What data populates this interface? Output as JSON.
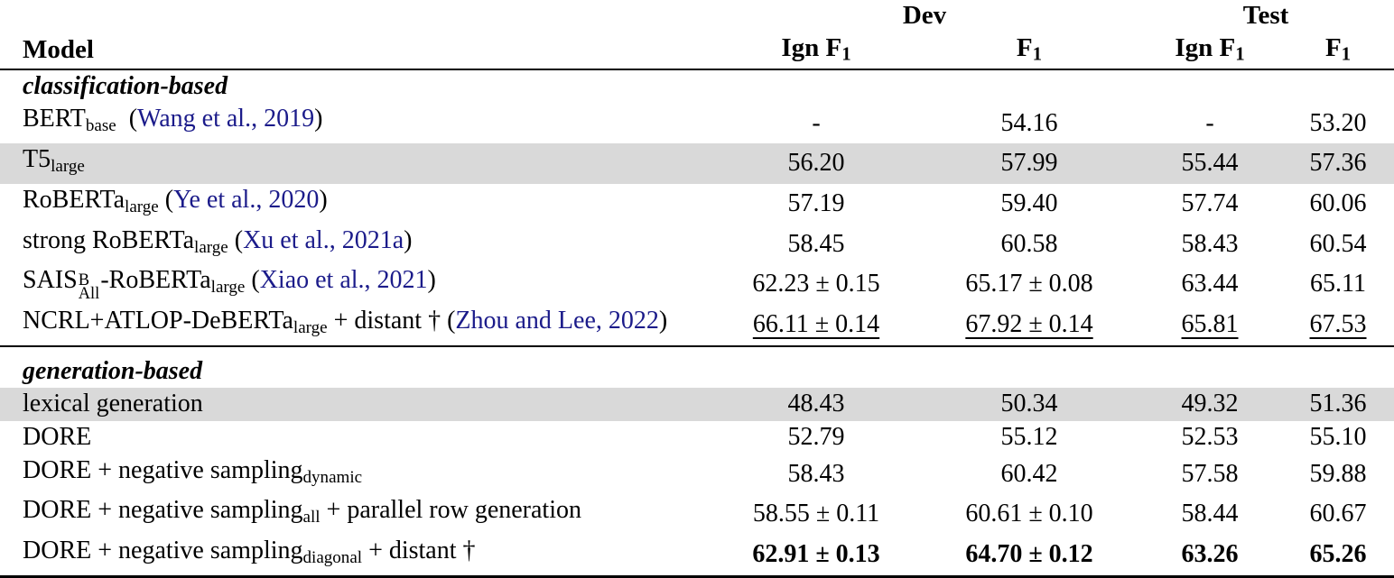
{
  "colors": {
    "highlight": "#d9d9d9",
    "citation": "#1b1b8a",
    "rule": "#000000"
  },
  "table": {
    "header": {
      "model_label": "Model",
      "dev_label": "Dev",
      "test_label": "Test",
      "metrics": [
        {
          "pre": "Ign F",
          "sub": "1"
        },
        {
          "pre": "F",
          "sub": "1"
        },
        {
          "pre": "Ign F",
          "sub": "1"
        },
        {
          "pre": "F",
          "sub": "1"
        }
      ]
    },
    "rows": [
      {
        "kind": "section",
        "label": "classification-based"
      },
      {
        "kind": "data",
        "highlight": false,
        "model": [
          {
            "t": "BERT"
          },
          {
            "s": "sub",
            "t": "base"
          },
          {
            "t": " ("
          },
          {
            "s": "cite",
            "t": "Wang et al., 2019"
          },
          {
            "t": ")"
          }
        ],
        "cells": [
          {
            "v": "-"
          },
          {
            "v": "54.16"
          },
          {
            "v": "-"
          },
          {
            "v": "53.20"
          }
        ]
      },
      {
        "kind": "data",
        "highlight": true,
        "model": [
          {
            "t": "T5"
          },
          {
            "s": "sub",
            "t": "large"
          }
        ],
        "cells": [
          {
            "v": "56.20"
          },
          {
            "v": "57.99"
          },
          {
            "v": "55.44"
          },
          {
            "v": "57.36"
          }
        ]
      },
      {
        "kind": "data",
        "highlight": false,
        "model": [
          {
            "t": "RoBERTa"
          },
          {
            "s": "sub",
            "t": "large"
          },
          {
            "t": " ("
          },
          {
            "s": "cite",
            "t": "Ye et al., 2020"
          },
          {
            "t": ")"
          }
        ],
        "cells": [
          {
            "v": "57.19"
          },
          {
            "v": "59.40"
          },
          {
            "v": "57.74"
          },
          {
            "v": "60.06"
          }
        ]
      },
      {
        "kind": "data",
        "highlight": false,
        "model": [
          {
            "t": "strong RoBERTa"
          },
          {
            "s": "sub",
            "t": "large"
          },
          {
            "t": " ("
          },
          {
            "s": "cite",
            "t": "Xu et al., 2021a"
          },
          {
            "t": ")"
          }
        ],
        "cells": [
          {
            "v": "58.45"
          },
          {
            "v": "60.58"
          },
          {
            "v": "58.43"
          },
          {
            "v": "60.54"
          }
        ]
      },
      {
        "kind": "data",
        "highlight": false,
        "model": [
          {
            "t": "SAIS"
          },
          {
            "s": "stack",
            "sup": "B",
            "sub": "All"
          },
          {
            "t": "-RoBERTa"
          },
          {
            "s": "sub",
            "t": "large"
          },
          {
            "t": " ("
          },
          {
            "s": "cite",
            "t": "Xiao et al., 2021"
          },
          {
            "t": ")"
          }
        ],
        "cells": [
          {
            "v": "62.23 ± 0.15"
          },
          {
            "v": "65.17 ± 0.08"
          },
          {
            "v": "63.44"
          },
          {
            "v": "65.11"
          }
        ]
      },
      {
        "kind": "data",
        "highlight": false,
        "model": [
          {
            "t": "NCRL+ATLOP-DeBERTa"
          },
          {
            "s": "sub",
            "t": "large"
          },
          {
            "t": " + distant † ("
          },
          {
            "s": "cite",
            "t": "Zhou and Lee, 2022"
          },
          {
            "t": ")"
          }
        ],
        "cells": [
          {
            "v": "66.11 ± 0.14",
            "u": true
          },
          {
            "v": "67.92 ± 0.14",
            "u": true
          },
          {
            "v": "65.81",
            "u": true
          },
          {
            "v": "67.53",
            "u": true
          }
        ]
      },
      {
        "kind": "section",
        "label": "generation-based",
        "divider": true
      },
      {
        "kind": "data",
        "highlight": true,
        "model": [
          {
            "t": "lexical generation"
          }
        ],
        "cells": [
          {
            "v": "48.43"
          },
          {
            "v": "50.34"
          },
          {
            "v": "49.32"
          },
          {
            "v": "51.36"
          }
        ]
      },
      {
        "kind": "data",
        "highlight": false,
        "model": [
          {
            "t": "DORE"
          }
        ],
        "cells": [
          {
            "v": "52.79"
          },
          {
            "v": "55.12"
          },
          {
            "v": "52.53"
          },
          {
            "v": "55.10"
          }
        ]
      },
      {
        "kind": "data",
        "highlight": false,
        "model": [
          {
            "t": "DORE + negative sampling"
          },
          {
            "s": "sub",
            "t": "dynamic"
          }
        ],
        "cells": [
          {
            "v": "58.43"
          },
          {
            "v": "60.42"
          },
          {
            "v": "57.58"
          },
          {
            "v": "59.88"
          }
        ]
      },
      {
        "kind": "data",
        "highlight": false,
        "model": [
          {
            "t": "DORE + negative sampling"
          },
          {
            "s": "sub",
            "t": "all"
          },
          {
            "t": " + parallel row generation"
          }
        ],
        "cells": [
          {
            "v": "58.55 ± 0.11"
          },
          {
            "v": "60.61 ± 0.10"
          },
          {
            "v": "58.44"
          },
          {
            "v": "60.67"
          }
        ]
      },
      {
        "kind": "data",
        "highlight": false,
        "model": [
          {
            "t": "DORE + negative sampling"
          },
          {
            "s": "sub",
            "t": "diagonal"
          },
          {
            "t": " + distant †"
          }
        ],
        "cells": [
          {
            "v": "62.91 ± 0.13",
            "b": true
          },
          {
            "v": "64.70 ± 0.12",
            "b": true
          },
          {
            "v": "63.26",
            "b": true
          },
          {
            "v": "65.26",
            "b": true
          }
        ]
      }
    ]
  }
}
